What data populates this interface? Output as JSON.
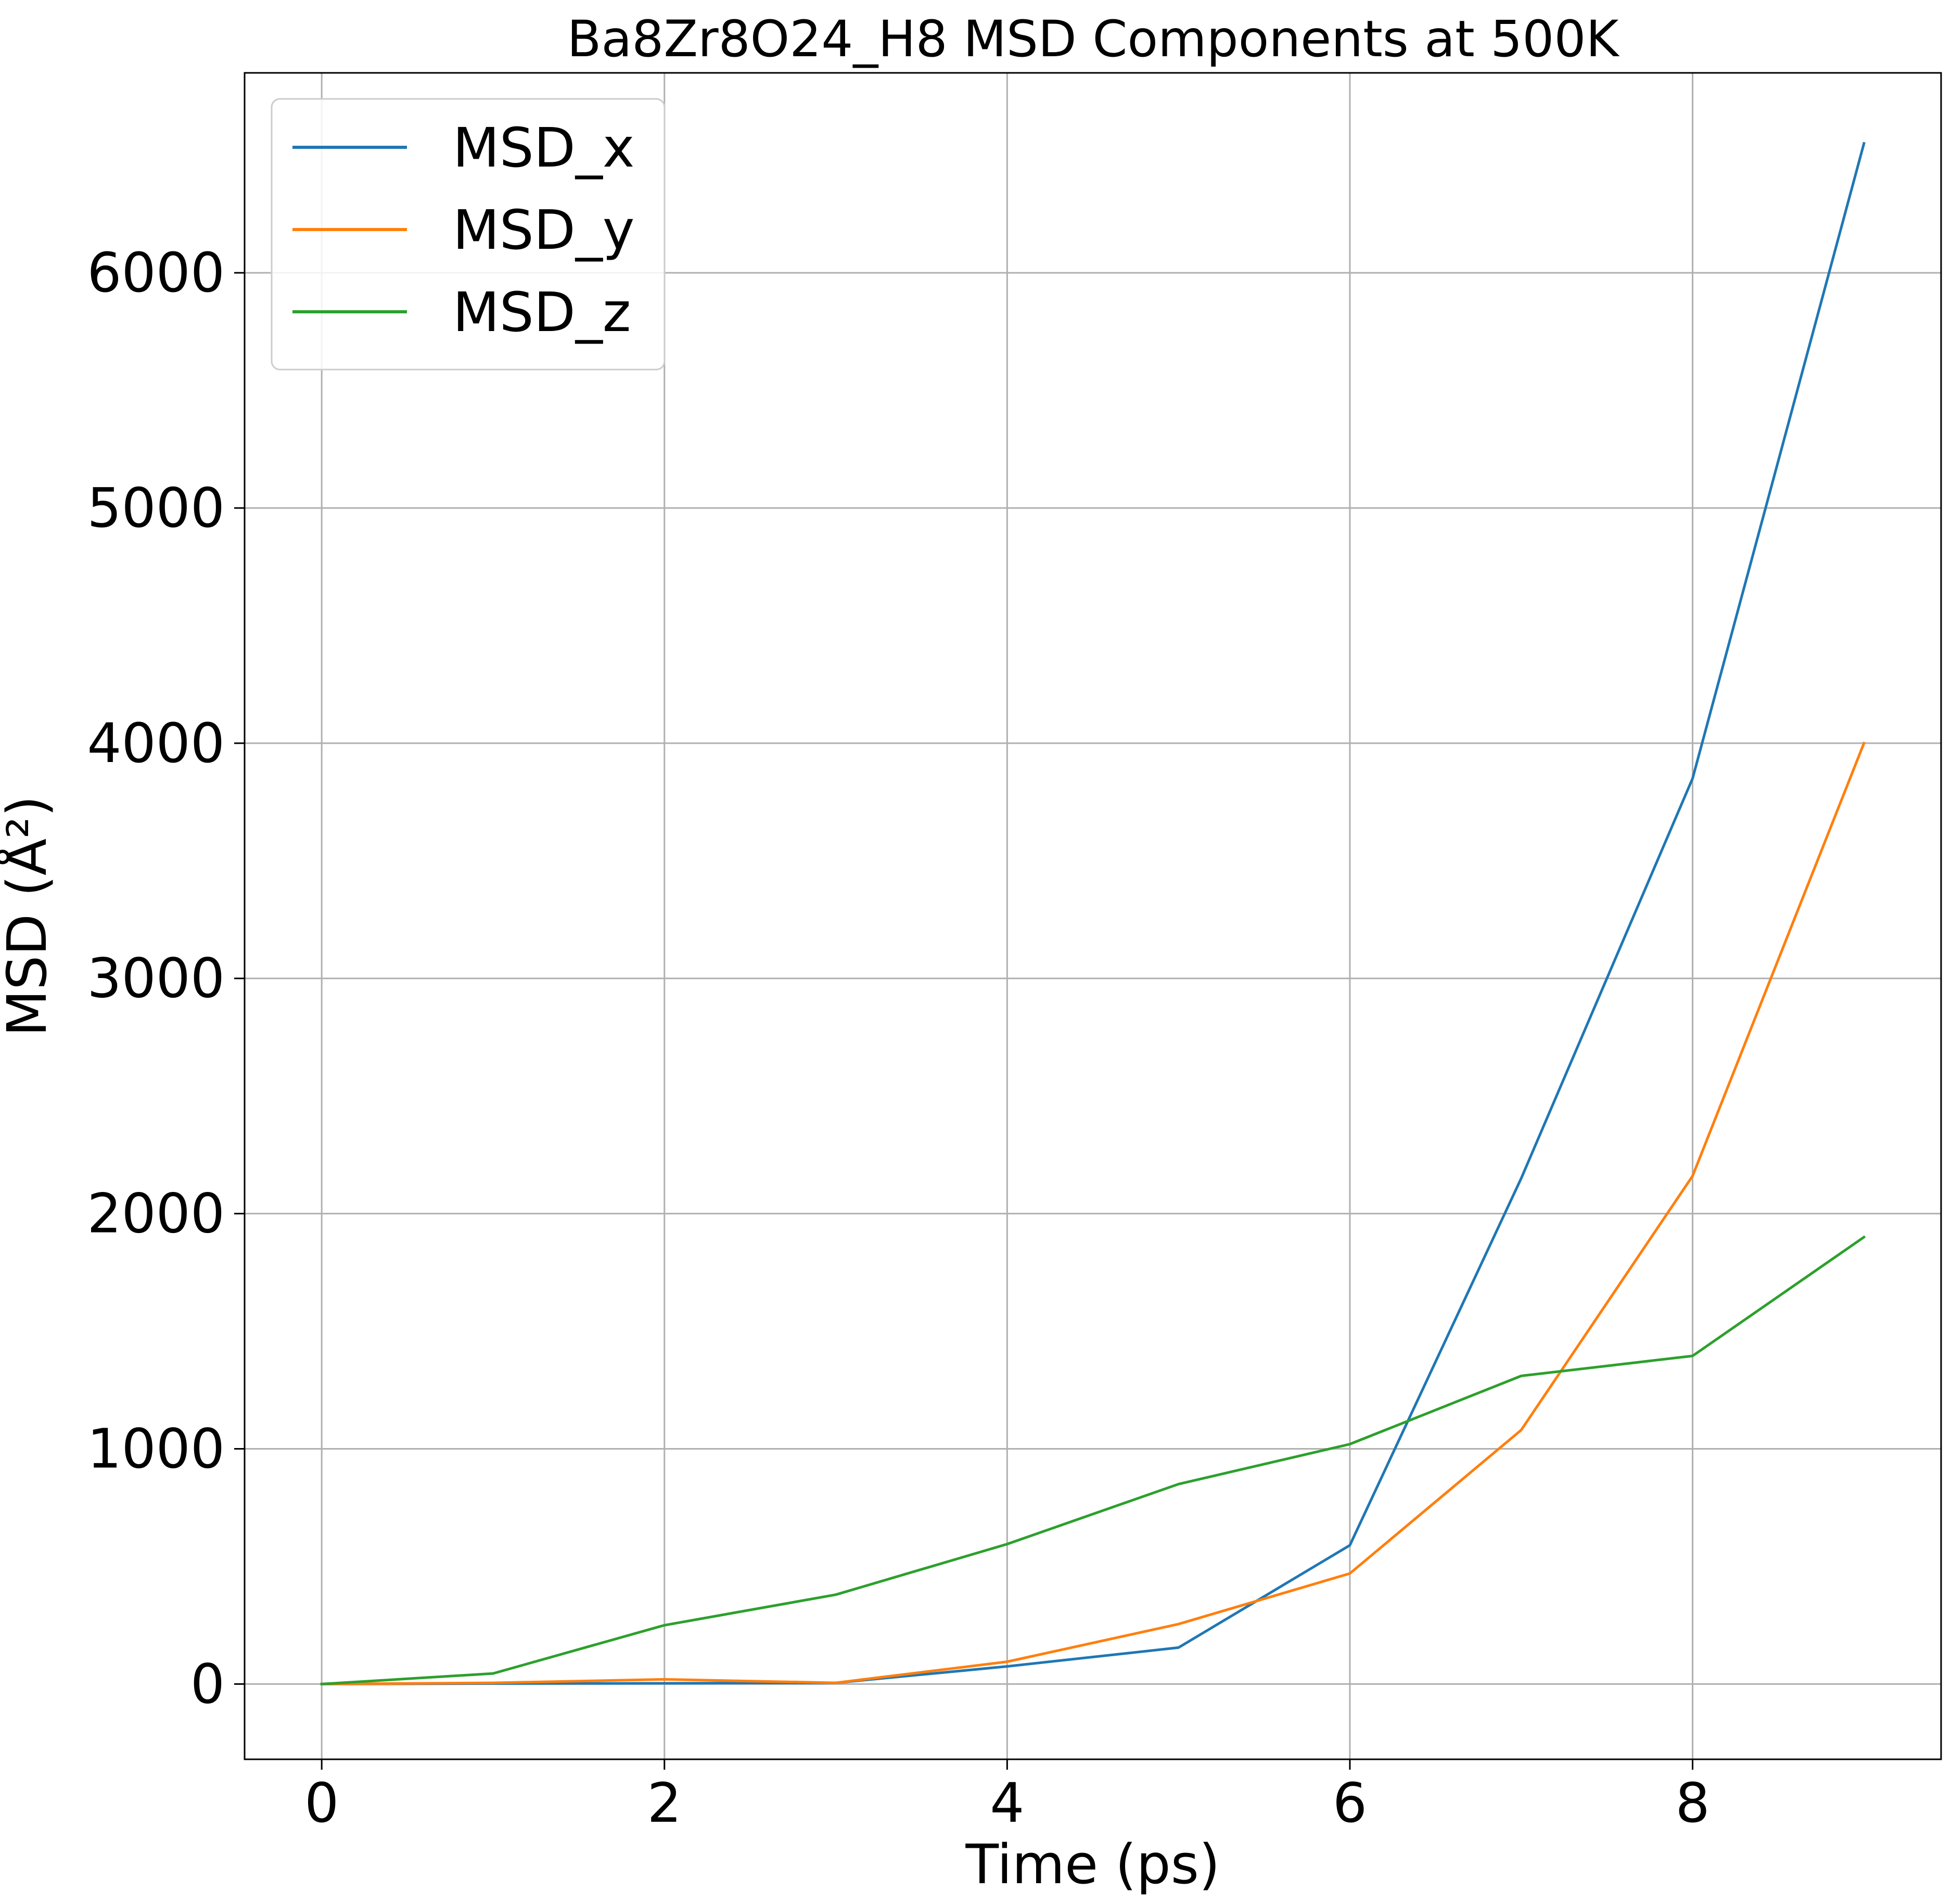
{
  "chart_data": {
    "type": "line",
    "title": "Ba8Zr8O24_H8 MSD Components at 500K",
    "xlabel": "Time (ps)",
    "ylabel": "MSD (Å²)",
    "xlim": [
      -0.45,
      9.45
    ],
    "ylim": [
      -320,
      6850
    ],
    "xticks": [
      0,
      2,
      4,
      6,
      8
    ],
    "yticks": [
      0,
      1000,
      2000,
      3000,
      4000,
      5000,
      6000
    ],
    "grid": true,
    "legend_position": "top-left",
    "x": [
      0,
      1,
      2,
      3,
      4,
      5,
      6,
      7,
      8,
      9
    ],
    "series": [
      {
        "name": "MSD_x",
        "color": "#1f77b4",
        "values": [
          0,
          2,
          3,
          5,
          75,
          155,
          590,
          2150,
          3850,
          6550
        ]
      },
      {
        "name": "MSD_y",
        "color": "#ff7f0e",
        "values": [
          0,
          5,
          20,
          5,
          95,
          255,
          470,
          1080,
          2160,
          4000
        ]
      },
      {
        "name": "MSD_z",
        "color": "#2ca02c",
        "values": [
          0,
          45,
          250,
          380,
          595,
          850,
          1020,
          1310,
          1395,
          1900
        ]
      }
    ]
  }
}
